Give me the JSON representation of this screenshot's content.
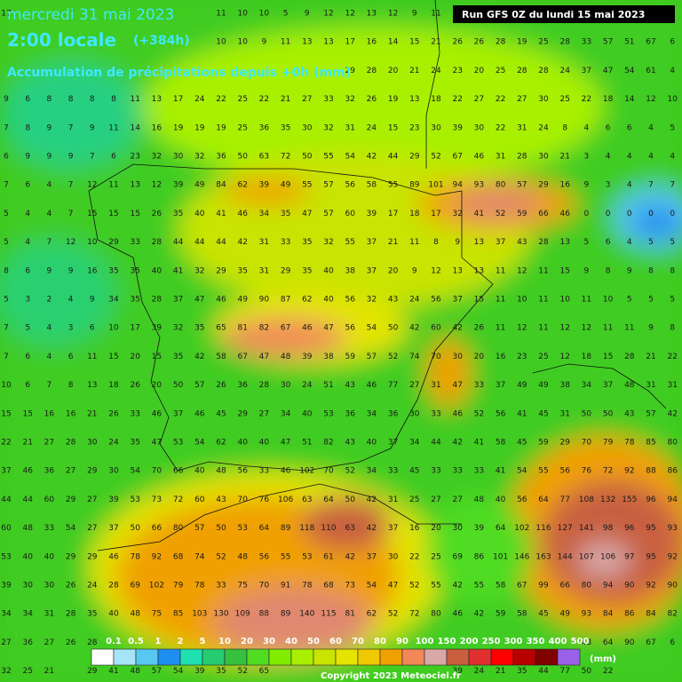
{
  "header": {
    "date": "mercredi 31 mai 2023",
    "time": "2:00 locale",
    "lead": "(+384h)",
    "subtitle": "Accumulation de précipitations depuis +0h (mm)",
    "run": "Run GFS 0Z du lundi 15 mai 2023"
  },
  "legend": {
    "labels": [
      "0.1",
      "0.5",
      "1",
      "2",
      "5",
      "10",
      "20",
      "30",
      "40",
      "50",
      "60",
      "70",
      "80",
      "90",
      "100",
      "150",
      "200",
      "250",
      "300",
      "350",
      "400",
      "500"
    ],
    "colors": [
      "#ffffff",
      "#a8e4f8",
      "#58c8f0",
      "#1e8ef0",
      "#20e0b0",
      "#28cc70",
      "#36c040",
      "#50dc20",
      "#80ec00",
      "#a8f000",
      "#c8e400",
      "#e4e400",
      "#f0c800",
      "#f0a000",
      "#f08858",
      "#d8a8a8",
      "#c86040",
      "#e03030",
      "#ff0000",
      "#b80000",
      "#800000",
      "#9a60e8"
    ],
    "unit": "(mm)"
  },
  "copyright": "Copyright 2023 Meteociel.fr",
  "grid": {
    "rows": [
      [
        17,
        null,
        null,
        null,
        null,
        null,
        null,
        null,
        null,
        null,
        11,
        10,
        10,
        5,
        9,
        12,
        12,
        13,
        12,
        9,
        11,
        null,
        null,
        null,
        null,
        null,
        null,
        null,
        null,
        null,
        null,
        null
      ],
      [
        null,
        null,
        null,
        null,
        null,
        null,
        null,
        null,
        null,
        null,
        10,
        10,
        9,
        11,
        13,
        13,
        17,
        16,
        14,
        15,
        21,
        26,
        26,
        28,
        19,
        25,
        28,
        33,
        57,
        51,
        67,
        6
      ],
      [
        null,
        null,
        null,
        null,
        null,
        null,
        null,
        null,
        null,
        null,
        null,
        null,
        null,
        null,
        null,
        null,
        29,
        28,
        20,
        21,
        24,
        23,
        20,
        25,
        28,
        28,
        24,
        37,
        47,
        54,
        61,
        4
      ],
      [
        9,
        6,
        8,
        8,
        8,
        8,
        11,
        13,
        17,
        24,
        22,
        25,
        22,
        21,
        27,
        33,
        32,
        26,
        19,
        13,
        18,
        22,
        27,
        22,
        27,
        30,
        25,
        22,
        18,
        14,
        12,
        10
      ],
      [
        7,
        8,
        9,
        7,
        9,
        11,
        14,
        16,
        19,
        19,
        19,
        25,
        36,
        35,
        30,
        32,
        31,
        24,
        15,
        23,
        30,
        39,
        30,
        22,
        31,
        24,
        8,
        4,
        6,
        6,
        4,
        5
      ],
      [
        6,
        9,
        9,
        9,
        7,
        6,
        23,
        32,
        30,
        32,
        36,
        50,
        63,
        72,
        50,
        55,
        54,
        42,
        44,
        29,
        52,
        67,
        46,
        31,
        28,
        30,
        21,
        3,
        4,
        4,
        4,
        4
      ],
      [
        7,
        6,
        4,
        7,
        12,
        11,
        13,
        12,
        39,
        49,
        84,
        62,
        39,
        49,
        55,
        57,
        56,
        58,
        55,
        89,
        101,
        94,
        93,
        80,
        57,
        29,
        16,
        9,
        3,
        4,
        7,
        7
      ],
      [
        5,
        4,
        4,
        7,
        15,
        15,
        15,
        26,
        35,
        40,
        41,
        46,
        34,
        35,
        47,
        57,
        60,
        39,
        17,
        18,
        17,
        32,
        41,
        52,
        59,
        66,
        46,
        0,
        0,
        0,
        0,
        0
      ],
      [
        5,
        4,
        7,
        12,
        10,
        29,
        33,
        28,
        44,
        44,
        44,
        42,
        31,
        33,
        35,
        32,
        55,
        37,
        21,
        11,
        8,
        9,
        13,
        37,
        43,
        28,
        13,
        5,
        6,
        4,
        5,
        5
      ],
      [
        8,
        6,
        9,
        9,
        16,
        35,
        35,
        40,
        41,
        32,
        29,
        35,
        31,
        29,
        35,
        40,
        38,
        37,
        20,
        9,
        12,
        13,
        13,
        11,
        12,
        11,
        15,
        9,
        8,
        9,
        8,
        8
      ],
      [
        5,
        3,
        2,
        4,
        9,
        34,
        35,
        28,
        37,
        47,
        46,
        49,
        90,
        87,
        62,
        40,
        56,
        32,
        43,
        24,
        56,
        37,
        15,
        11,
        10,
        11,
        10,
        11,
        10,
        5,
        5,
        5
      ],
      [
        7,
        5,
        4,
        3,
        6,
        10,
        17,
        39,
        32,
        35,
        65,
        81,
        82,
        67,
        46,
        47,
        56,
        54,
        50,
        42,
        60,
        42,
        26,
        11,
        12,
        11,
        12,
        12,
        11,
        11,
        9,
        8
      ],
      [
        7,
        6,
        4,
        6,
        11,
        15,
        20,
        15,
        35,
        42,
        58,
        67,
        47,
        48,
        39,
        38,
        59,
        57,
        52,
        74,
        70,
        30,
        20,
        16,
        23,
        25,
        12,
        18,
        15,
        28,
        21,
        22
      ],
      [
        10,
        6,
        7,
        8,
        13,
        18,
        26,
        20,
        50,
        57,
        26,
        36,
        28,
        30,
        24,
        51,
        43,
        46,
        77,
        27,
        31,
        47,
        33,
        37,
        49,
        49,
        38,
        34,
        37,
        48,
        31,
        31
      ],
      [
        15,
        15,
        16,
        16,
        21,
        26,
        33,
        46,
        37,
        46,
        45,
        29,
        27,
        34,
        40,
        53,
        36,
        34,
        36,
        30,
        33,
        46,
        52,
        56,
        41,
        45,
        31,
        50,
        50,
        43,
        57,
        42
      ],
      [
        22,
        21,
        27,
        28,
        30,
        24,
        35,
        47,
        53,
        54,
        62,
        40,
        40,
        47,
        51,
        82,
        43,
        40,
        37,
        34,
        44,
        42,
        41,
        58,
        45,
        59,
        29,
        70,
        79,
        78,
        85,
        80
      ],
      [
        37,
        46,
        36,
        27,
        29,
        30,
        54,
        70,
        66,
        40,
        48,
        56,
        33,
        46,
        102,
        70,
        52,
        34,
        33,
        45,
        33,
        33,
        33,
        41,
        54,
        55,
        56,
        76,
        72,
        92,
        88,
        86
      ],
      [
        44,
        44,
        60,
        29,
        27,
        39,
        53,
        73,
        72,
        60,
        43,
        70,
        76,
        106,
        63,
        64,
        50,
        42,
        31,
        25,
        27,
        27,
        48,
        40,
        56,
        64,
        77,
        108,
        132,
        155,
        96,
        94
      ],
      [
        60,
        48,
        33,
        54,
        27,
        37,
        50,
        66,
        80,
        57,
        50,
        53,
        64,
        89,
        118,
        110,
        63,
        42,
        37,
        16,
        20,
        30,
        39,
        64,
        102,
        116,
        127,
        141,
        98,
        96,
        95,
        93
      ],
      [
        53,
        40,
        40,
        29,
        29,
        46,
        78,
        92,
        68,
        74,
        52,
        48,
        56,
        55,
        53,
        61,
        42,
        37,
        30,
        22,
        25,
        69,
        86,
        101,
        146,
        163,
        144,
        107,
        106,
        97,
        95,
        92
      ],
      [
        39,
        30,
        30,
        26,
        24,
        28,
        69,
        102,
        79,
        78,
        33,
        75,
        70,
        91,
        78,
        68,
        73,
        54,
        47,
        52,
        55,
        42,
        55,
        58,
        67,
        99,
        66,
        80,
        94,
        90,
        92,
        90
      ],
      [
        34,
        34,
        31,
        28,
        35,
        40,
        48,
        75,
        85,
        103,
        130,
        109,
        88,
        89,
        140,
        115,
        81,
        62,
        52,
        72,
        80,
        46,
        42,
        59,
        58,
        45,
        49,
        93,
        84,
        86,
        84,
        82
      ],
      [
        27,
        36,
        27,
        26,
        28,
        null,
        null,
        null,
        null,
        null,
        null,
        null,
        null,
        null,
        null,
        null,
        null,
        null,
        null,
        null,
        null,
        null,
        null,
        null,
        null,
        null,
        null,
        48,
        64,
        90,
        67,
        6
      ],
      [
        32,
        25,
        21,
        null,
        29,
        41,
        48,
        57,
        54,
        39,
        35,
        52,
        65,
        null,
        null,
        null,
        null,
        null,
        null,
        null,
        null,
        39,
        24,
        21,
        35,
        44,
        77,
        50,
        22,
        null,
        null,
        null
      ]
    ]
  }
}
